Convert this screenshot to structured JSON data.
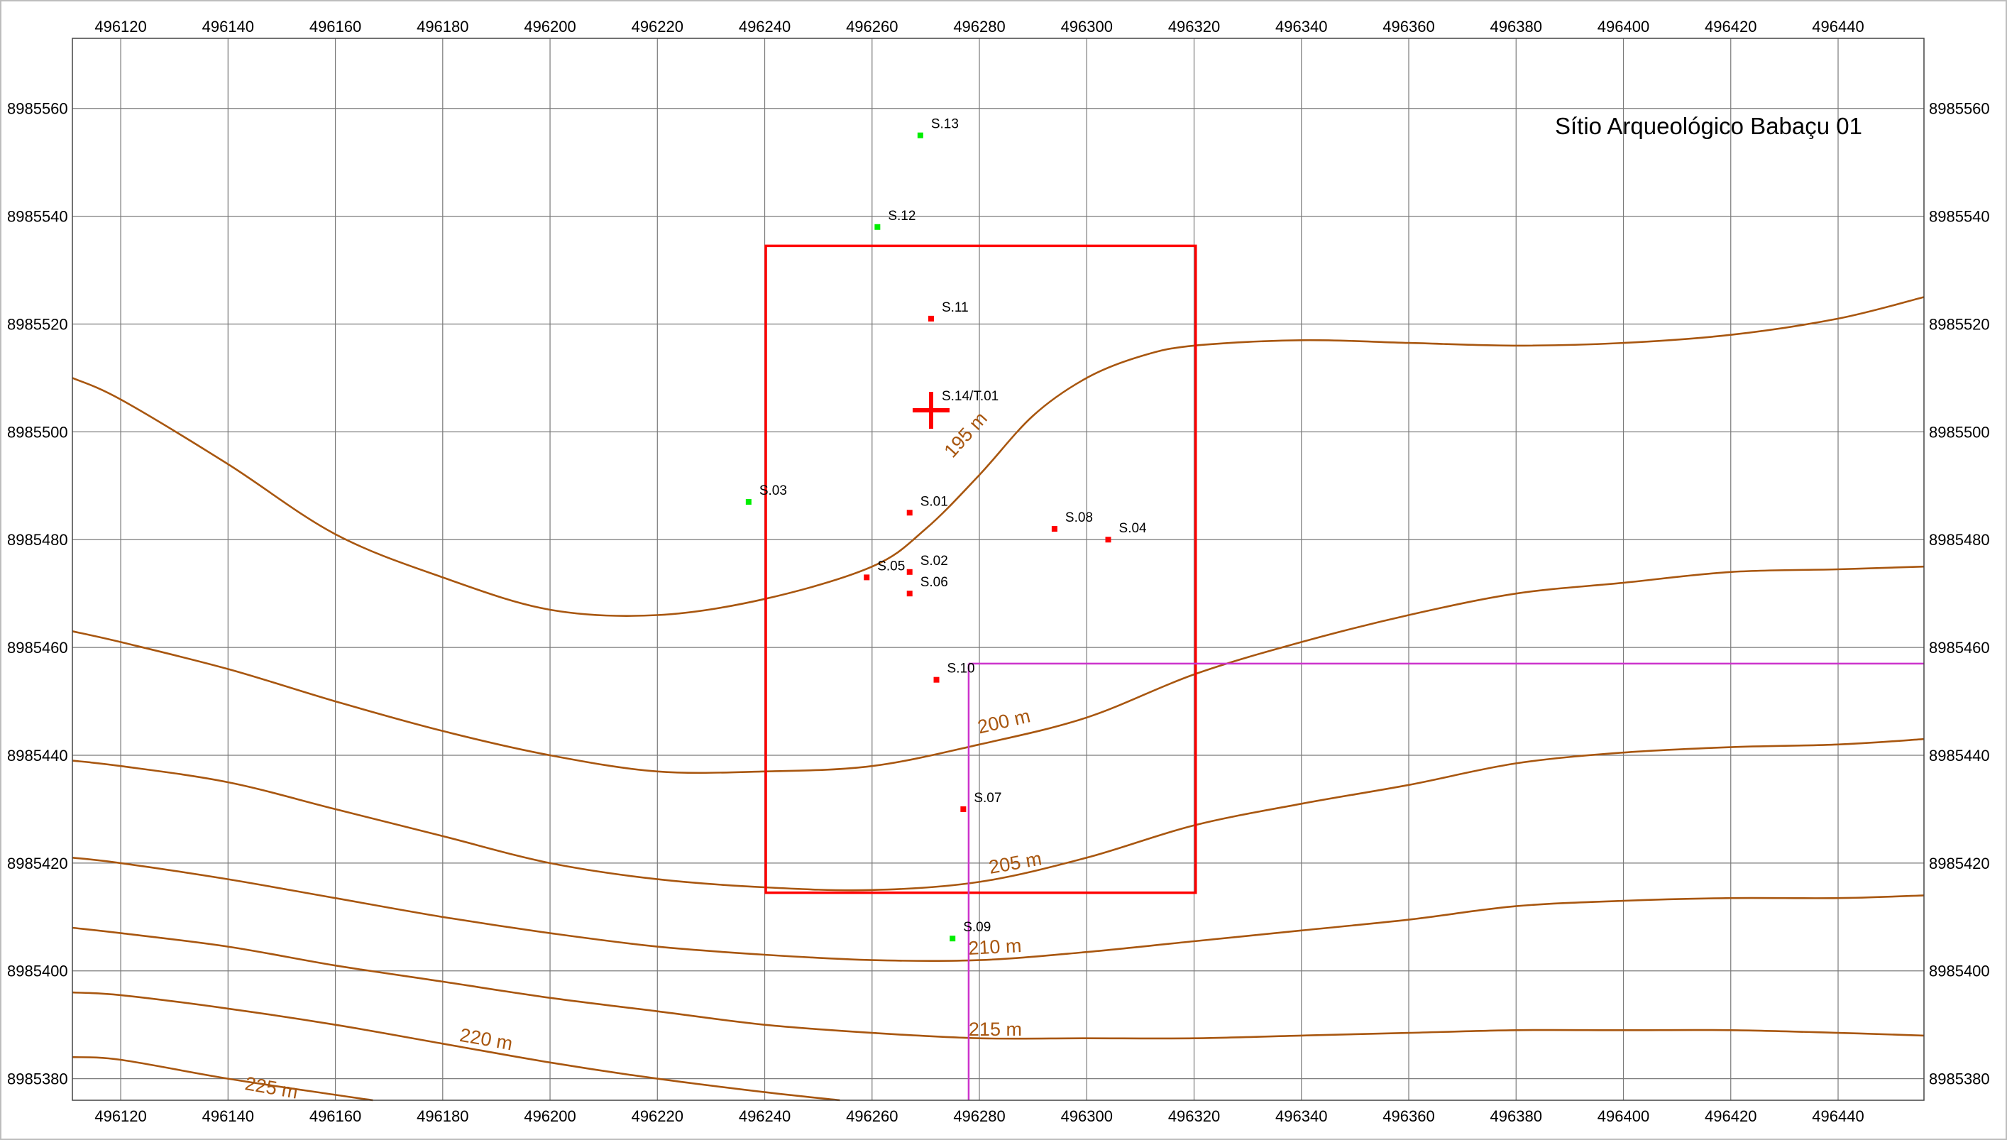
{
  "map": {
    "title": "Sítio Arqueológico Babaçu 01",
    "colors": {
      "background": "#ffffff",
      "grid": "#7a7a7a",
      "frame": "#444444",
      "contour": "#a8560f",
      "site_boundary": "#ff0000",
      "magenta_line": "#cc33cc",
      "positive_sample": "#ff0000",
      "negative_sample": "#00ee00"
    },
    "x_ticks": [
      "496120",
      "496140",
      "496160",
      "496180",
      "496200",
      "496220",
      "496240",
      "496260",
      "496280",
      "496300",
      "496320",
      "496340",
      "496360",
      "496380",
      "496400",
      "496420",
      "496440"
    ],
    "y_ticks": [
      "8985560",
      "8985540",
      "8985520",
      "8985500",
      "8985480",
      "8985460",
      "8985440",
      "8985420",
      "8985400",
      "8985380"
    ],
    "extent": {
      "x_min": 496111,
      "x_max": 496456,
      "y_max": 8985573,
      "y_min": 8985376
    },
    "site_boundary": {
      "x_min": 496240.2,
      "x_max": 496320.3,
      "y_min": 8985414.5,
      "y_max": 8985534.5
    },
    "magenta_lines": [
      {
        "points": [
          [
            496278,
            8985457
          ],
          [
            496456,
            8985457
          ]
        ]
      },
      {
        "points": [
          [
            496278,
            8985457
          ],
          [
            496278,
            8985376
          ]
        ]
      }
    ],
    "datum_cross": {
      "x": 496271,
      "y": 8985504,
      "label": "S.14/T.01"
    },
    "samples": [
      {
        "label": "S.13",
        "x": 496269,
        "y": 8985555,
        "status": "negative"
      },
      {
        "label": "S.12",
        "x": 496261,
        "y": 8985538,
        "status": "negative"
      },
      {
        "label": "S.11",
        "x": 496271,
        "y": 8985521,
        "status": "positive"
      },
      {
        "label": "S.03",
        "x": 496237,
        "y": 8985487,
        "status": "negative"
      },
      {
        "label": "S.01",
        "x": 496267,
        "y": 8985485,
        "status": "positive"
      },
      {
        "label": "S.08",
        "x": 496294,
        "y": 8985482,
        "status": "positive"
      },
      {
        "label": "S.04",
        "x": 496304,
        "y": 8985480,
        "status": "positive"
      },
      {
        "label": "S.05",
        "x": 496259,
        "y": 8985473,
        "status": "positive"
      },
      {
        "label": "S.02",
        "x": 496267,
        "y": 8985474,
        "status": "positive"
      },
      {
        "label": "S.06",
        "x": 496267,
        "y": 8985470,
        "status": "positive"
      },
      {
        "label": "S.10",
        "x": 496272,
        "y": 8985454,
        "status": "positive"
      },
      {
        "label": "S.07",
        "x": 496277,
        "y": 8985430,
        "status": "positive"
      },
      {
        "label": "S.09",
        "x": 496275,
        "y": 8985406,
        "status": "negative"
      }
    ],
    "contours": [
      {
        "label": "195 m",
        "label_at": [
          496275,
          8985495
        ],
        "label_rotate": -48,
        "points": [
          [
            496111,
            8985510
          ],
          [
            496120,
            8985506
          ],
          [
            496140,
            8985494
          ],
          [
            496160,
            8985481
          ],
          [
            496180,
            8985473
          ],
          [
            496200,
            8985467
          ],
          [
            496220,
            8985466
          ],
          [
            496240,
            8985469
          ],
          [
            496260,
            8985475
          ],
          [
            496270,
            8985482
          ],
          [
            496280,
            8985492
          ],
          [
            496290,
            8985503
          ],
          [
            496300,
            8985510
          ],
          [
            496310,
            8985514
          ],
          [
            496320,
            8985516
          ],
          [
            496340,
            8985517
          ],
          [
            496360,
            8985516.5
          ],
          [
            496380,
            8985516
          ],
          [
            496400,
            8985516.5
          ],
          [
            496420,
            8985518
          ],
          [
            496440,
            8985521
          ],
          [
            496456,
            8985525
          ]
        ]
      },
      {
        "label": "200 m",
        "label_at": [
          496280,
          8985444
        ],
        "label_rotate": -13,
        "points": [
          [
            496111,
            8985463
          ],
          [
            496120,
            8985461
          ],
          [
            496140,
            8985456
          ],
          [
            496160,
            8985450
          ],
          [
            496180,
            8985444.5
          ],
          [
            496200,
            8985440
          ],
          [
            496220,
            8985437
          ],
          [
            496240,
            8985437
          ],
          [
            496260,
            8985438
          ],
          [
            496280,
            8985442
          ],
          [
            496300,
            8985447
          ],
          [
            496320,
            8985455
          ],
          [
            496340,
            8985461
          ],
          [
            496360,
            8985466
          ],
          [
            496380,
            8985470
          ],
          [
            496400,
            8985472
          ],
          [
            496420,
            8985474
          ],
          [
            496440,
            8985474.5
          ],
          [
            496456,
            8985475
          ]
        ]
      },
      {
        "label": "205 m",
        "label_at": [
          496282,
          8985418
        ],
        "label_rotate": -10,
        "points": [
          [
            496111,
            8985439
          ],
          [
            496120,
            8985438
          ],
          [
            496140,
            8985435
          ],
          [
            496160,
            8985430
          ],
          [
            496180,
            8985425
          ],
          [
            496200,
            8985420
          ],
          [
            496220,
            8985417
          ],
          [
            496240,
            8985415.5
          ],
          [
            496260,
            8985415
          ],
          [
            496280,
            8985416.5
          ],
          [
            496300,
            8985421
          ],
          [
            496320,
            8985427
          ],
          [
            496340,
            8985431
          ],
          [
            496360,
            8985434.5
          ],
          [
            496380,
            8985438.5
          ],
          [
            496400,
            8985440.5
          ],
          [
            496420,
            8985441.5
          ],
          [
            496440,
            8985442
          ],
          [
            496456,
            8985443
          ]
        ]
      },
      {
        "label": "210 m",
        "label_at": [
          496278,
          8985403
        ],
        "label_rotate": -3,
        "points": [
          [
            496111,
            8985421
          ],
          [
            496120,
            8985420
          ],
          [
            496140,
            8985417
          ],
          [
            496160,
            8985413.5
          ],
          [
            496180,
            8985410
          ],
          [
            496200,
            8985407
          ],
          [
            496220,
            8985404.5
          ],
          [
            496240,
            8985403
          ],
          [
            496260,
            8985402
          ],
          [
            496280,
            8985402
          ],
          [
            496300,
            8985403.5
          ],
          [
            496320,
            8985405.5
          ],
          [
            496340,
            8985407.5
          ],
          [
            496360,
            8985409.5
          ],
          [
            496380,
            8985412
          ],
          [
            496400,
            8985413
          ],
          [
            496420,
            8985413.5
          ],
          [
            496440,
            8985413.5
          ],
          [
            496456,
            8985414
          ]
        ]
      },
      {
        "label": "215 m",
        "label_at": [
          496278,
          8985388
        ],
        "label_rotate": 0,
        "points": [
          [
            496111,
            8985408
          ],
          [
            496120,
            8985407
          ],
          [
            496140,
            8985404.5
          ],
          [
            496160,
            8985401
          ],
          [
            496180,
            8985398
          ],
          [
            496200,
            8985395
          ],
          [
            496220,
            8985392.5
          ],
          [
            496240,
            8985390
          ],
          [
            496260,
            8985388.5
          ],
          [
            496280,
            8985387.5
          ],
          [
            496300,
            8985387.5
          ],
          [
            496320,
            8985387.5
          ],
          [
            496340,
            8985388
          ],
          [
            496360,
            8985388.5
          ],
          [
            496380,
            8985389
          ],
          [
            496400,
            8985389
          ],
          [
            496420,
            8985389
          ],
          [
            496440,
            8985388.5
          ],
          [
            496456,
            8985388
          ]
        ]
      },
      {
        "label": "220 m",
        "label_at": [
          496183,
          8985387
        ],
        "label_rotate": 10,
        "points": [
          [
            496111,
            8985396
          ],
          [
            496120,
            8985395.5
          ],
          [
            496140,
            8985393
          ],
          [
            496160,
            8985390
          ],
          [
            496180,
            8985386.5
          ],
          [
            496200,
            8985383
          ],
          [
            496220,
            8985380
          ],
          [
            496240,
            8985377.5
          ],
          [
            496254,
            8985376
          ]
        ]
      },
      {
        "label": "225 m",
        "label_at": [
          496143,
          8985378
        ],
        "label_rotate": 10,
        "points": [
          [
            496111,
            8985384
          ],
          [
            496120,
            8985383.5
          ],
          [
            496140,
            8985380
          ],
          [
            496160,
            8985377
          ],
          [
            496167,
            8985376
          ]
        ]
      }
    ]
  }
}
